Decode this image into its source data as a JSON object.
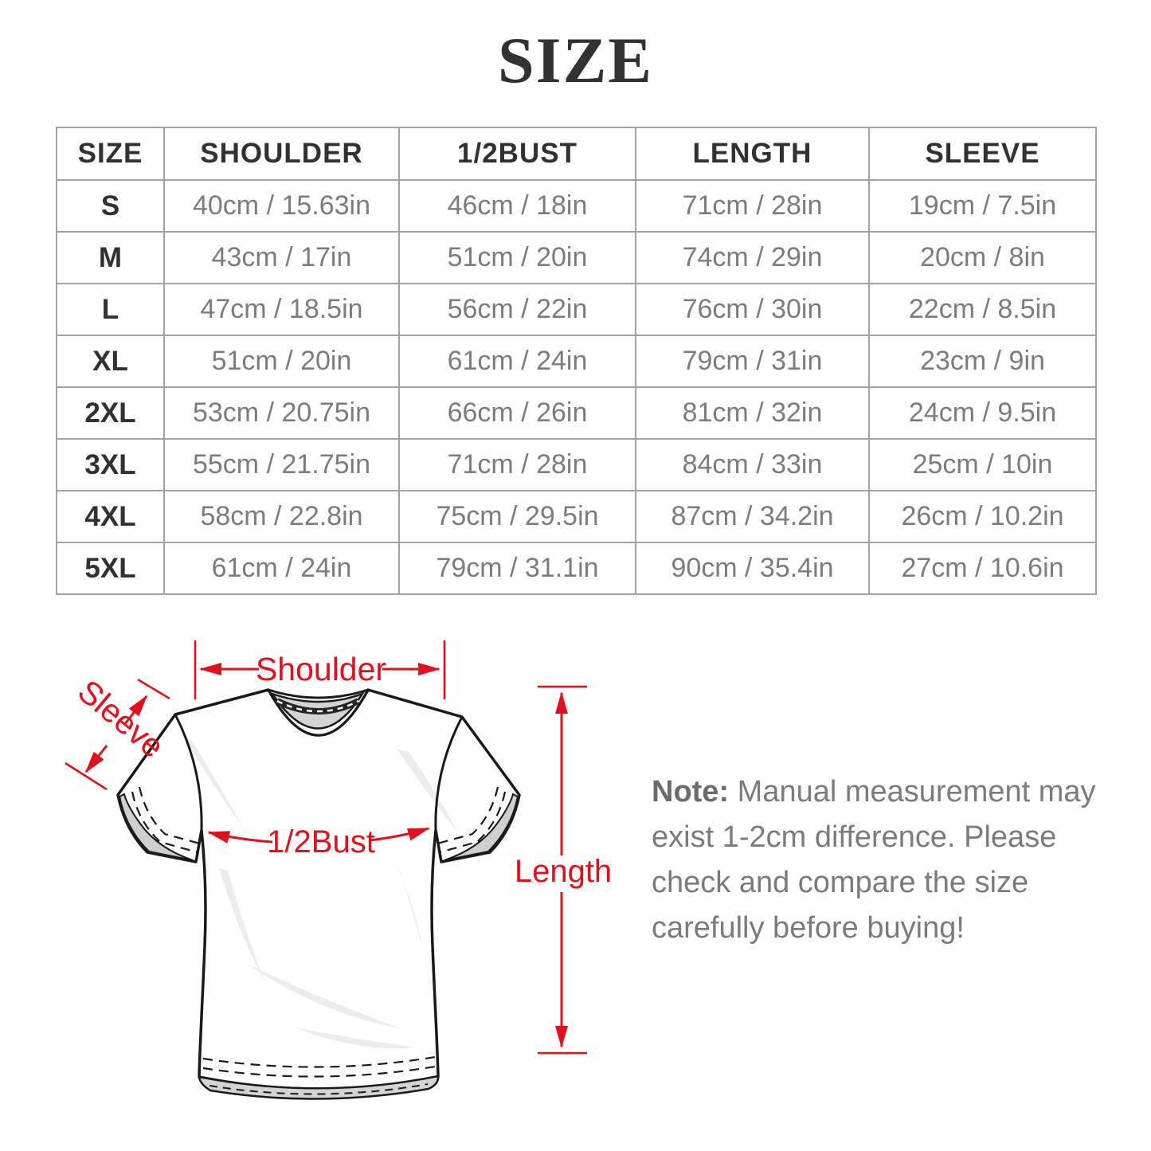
{
  "title": "SIZE",
  "table": {
    "headers": [
      "SIZE",
      "SHOULDER",
      "1/2BUST",
      "LENGTH",
      "SLEEVE"
    ],
    "rows": [
      [
        "S",
        "40cm / 15.63in",
        "46cm / 18in",
        "71cm / 28in",
        "19cm / 7.5in"
      ],
      [
        "M",
        "43cm / 17in",
        "51cm / 20in",
        "74cm / 29in",
        "20cm / 8in"
      ],
      [
        "L",
        "47cm / 18.5in",
        "56cm / 22in",
        "76cm / 30in",
        "22cm / 8.5in"
      ],
      [
        "XL",
        "51cm / 20in",
        "61cm / 24in",
        "79cm / 31in",
        "23cm / 9in"
      ],
      [
        "2XL",
        "53cm / 20.75in",
        "66cm / 26in",
        "81cm / 32in",
        "24cm / 9.5in"
      ],
      [
        "3XL",
        "55cm / 21.75in",
        "71cm / 28in",
        "84cm / 33in",
        "25cm / 10in"
      ],
      [
        "4XL",
        "58cm / 22.8in",
        "75cm / 29.5in",
        "87cm / 34.2in",
        "26cm / 10.2in"
      ],
      [
        "5XL",
        "61cm / 24in",
        "79cm / 31.1in",
        "90cm / 35.4in",
        "27cm / 10.6in"
      ]
    ]
  },
  "diagram": {
    "labels": {
      "shoulder": "Shoulder",
      "sleeve": "Sleeve",
      "half_bust": "1/2Bust",
      "length": "Length"
    }
  },
  "note": {
    "label": "Note:",
    "lines": [
      "Manual measurement may",
      "exist 1-2cm difference. Please",
      "check and compare the size",
      "carefully before buying!"
    ]
  },
  "colors": {
    "accent_red": "#e2101c",
    "table_border": "#a2a2a2",
    "heading_text": "#313131",
    "value_text": "#7c7c7c",
    "note_text": "#7b7b7b"
  }
}
